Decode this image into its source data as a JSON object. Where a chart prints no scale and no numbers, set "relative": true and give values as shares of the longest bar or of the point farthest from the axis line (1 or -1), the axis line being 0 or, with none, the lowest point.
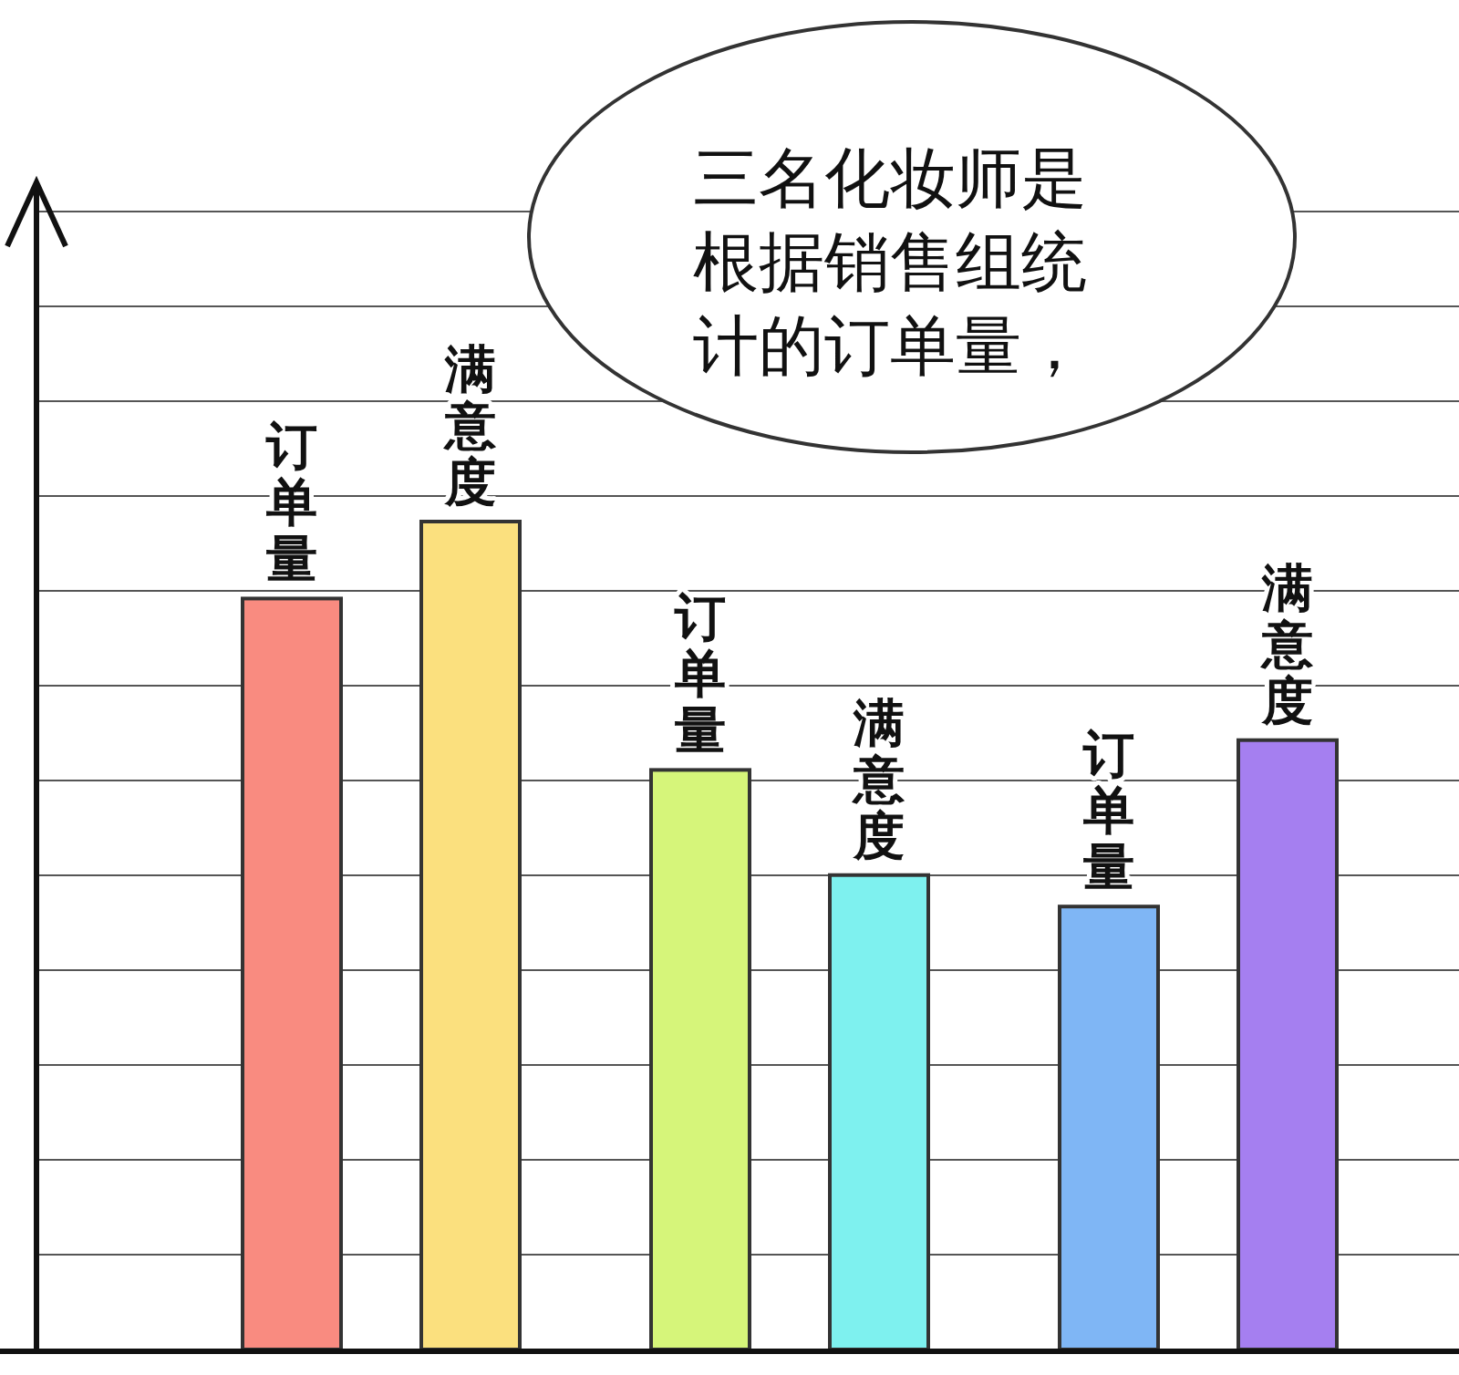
{
  "chart_data": {
    "type": "bar",
    "relative": true,
    "grid": "y",
    "categories": [
      "订单量",
      "满意度",
      "订单量",
      "满意度",
      "订单量",
      "满意度"
    ],
    "values": [
      0.907,
      1,
      0.7,
      0.573,
      0.535,
      0.736
    ],
    "colors": [
      "#f98b80",
      "#fbe07e",
      "#d6f57a",
      "#7ef1ef",
      "#7fb6f5",
      "#a57ff0"
    ],
    "annotations": [
      "三名化妆师是根据销售组统计的订单量，"
    ]
  }
}
